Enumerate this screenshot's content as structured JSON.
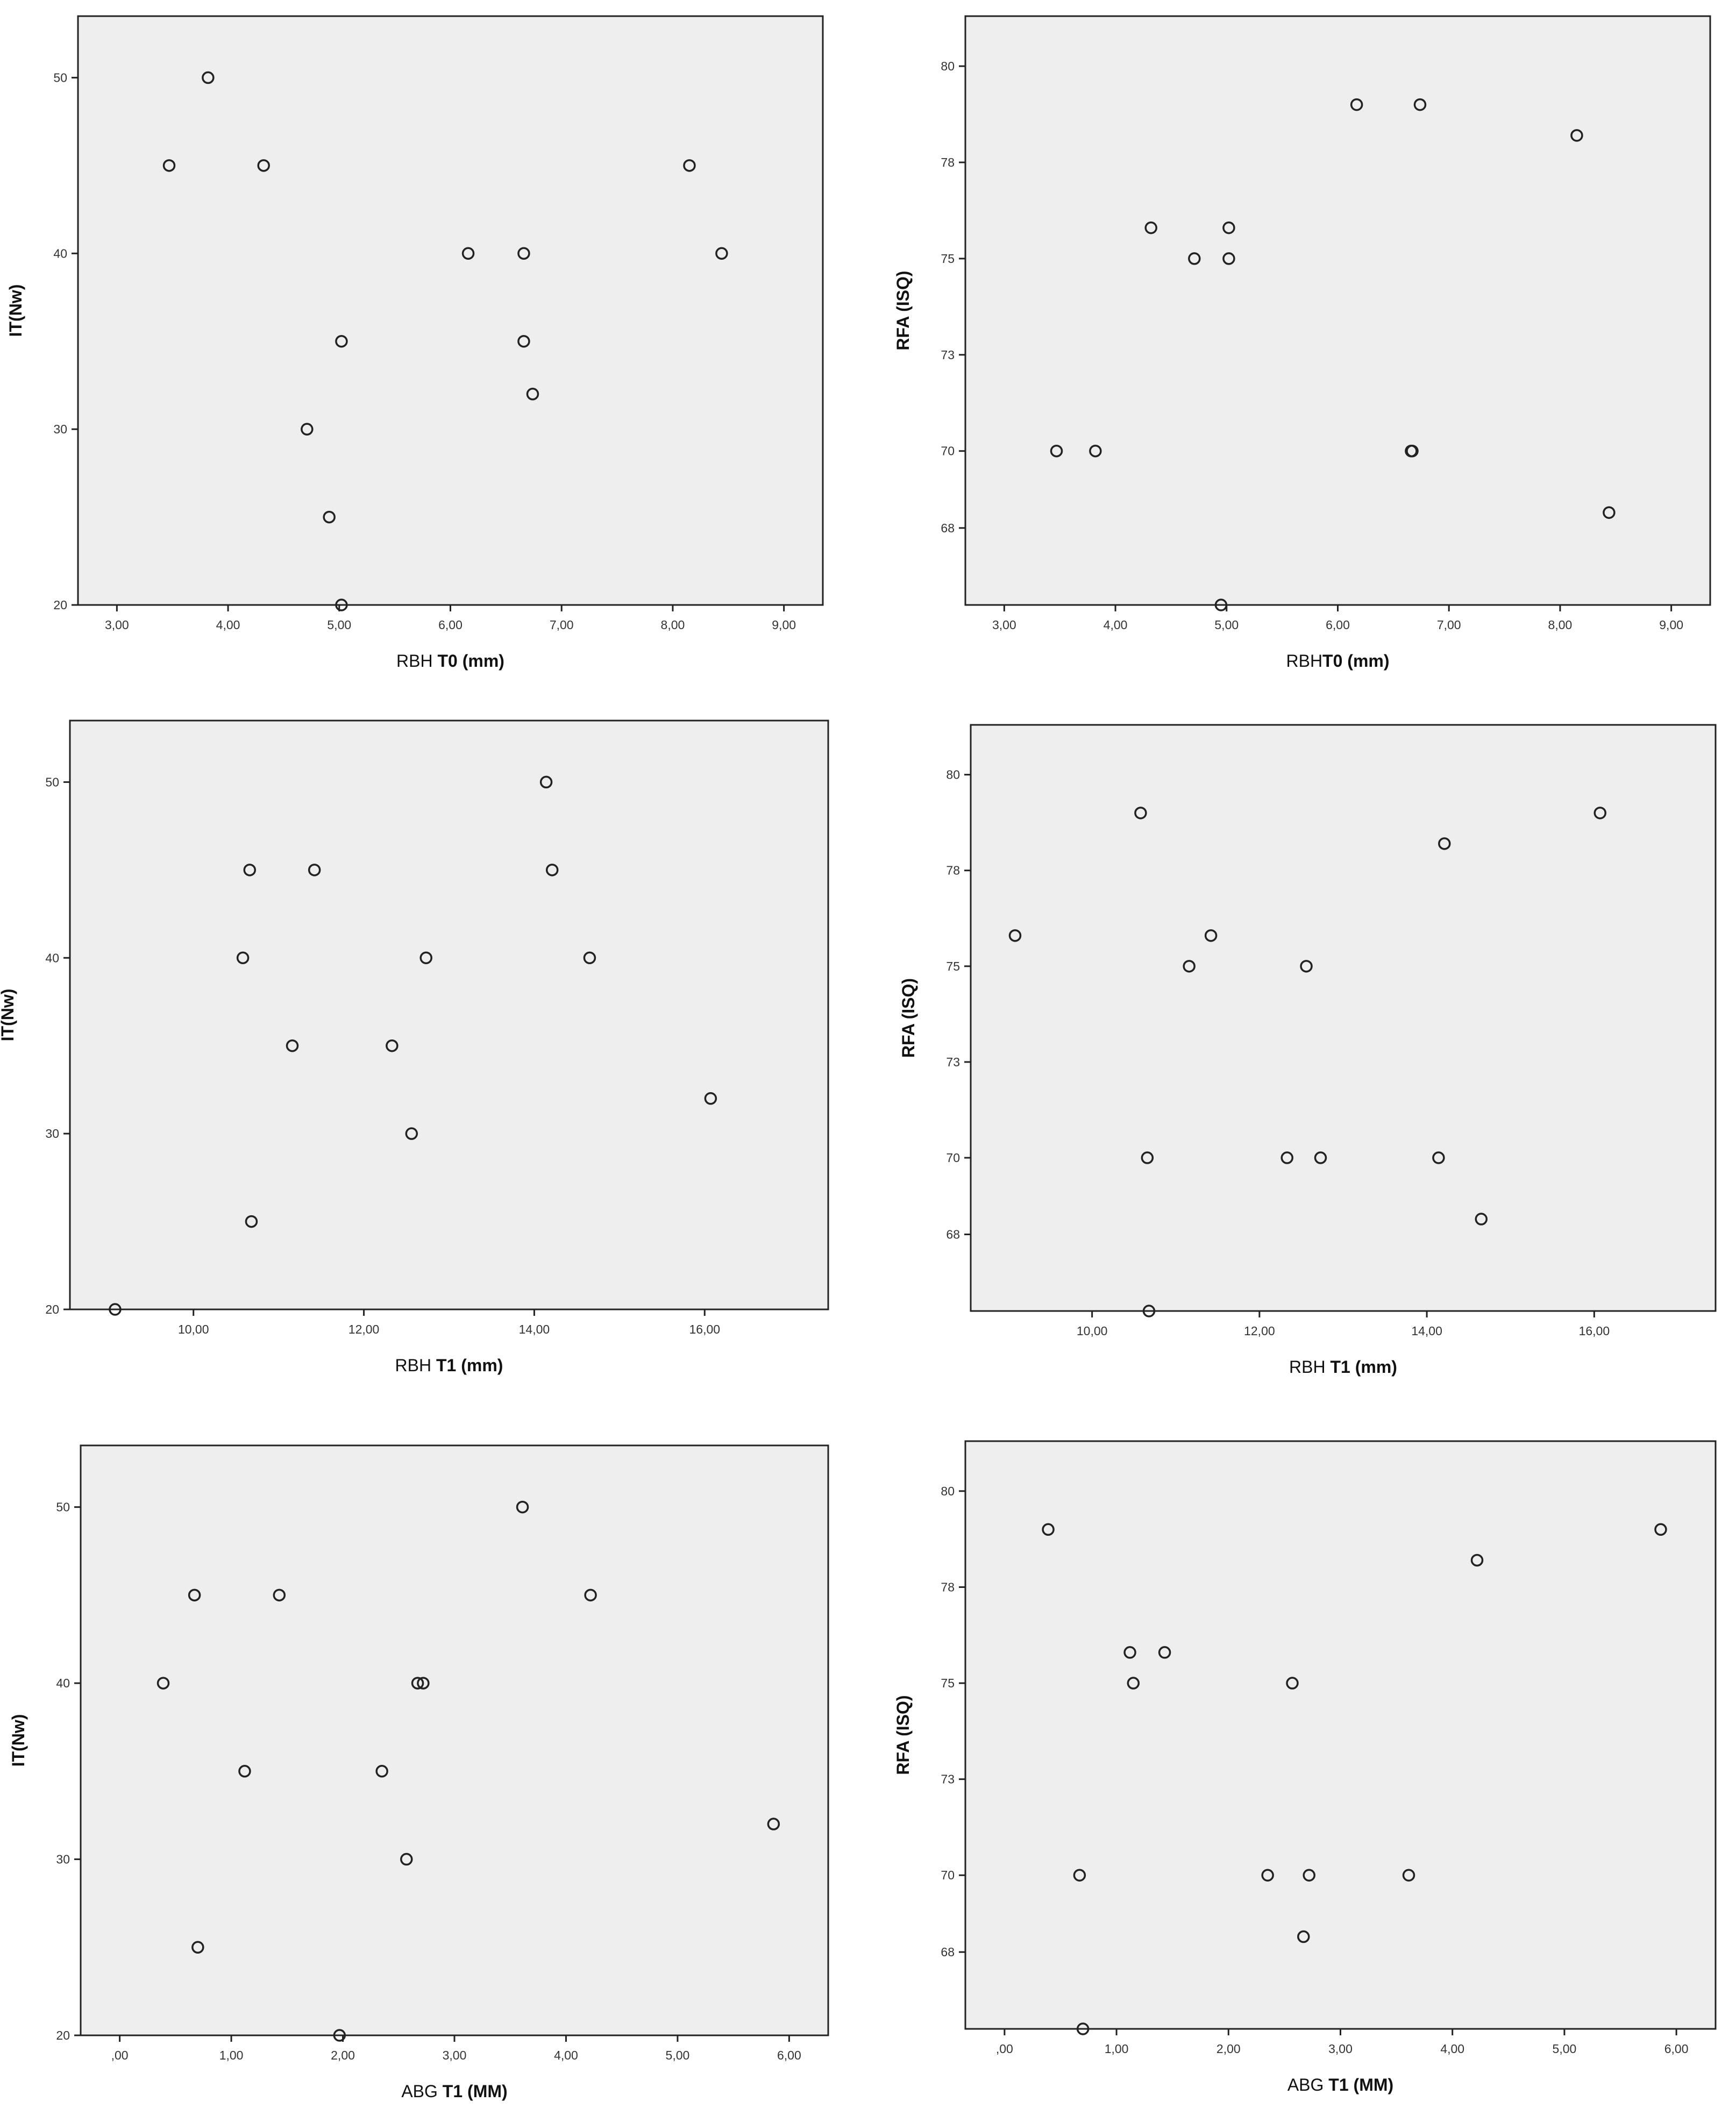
{
  "chart_data": [
    {
      "type": "scatter",
      "xlabel": "RBH T0 (mm)",
      "xlabel_parts": [
        "RBH ",
        "T0 (mm)"
      ],
      "ylabel": "IT(Nw)",
      "xlim": [
        2.65,
        9.35
      ],
      "ylim": [
        20,
        53.5
      ],
      "xticks": [
        3,
        4,
        5,
        6,
        7,
        8,
        9
      ],
      "xtick_labels": [
        "3,00",
        "4,00",
        "5,00",
        "6,00",
        "7,00",
        "8,00",
        "9,00"
      ],
      "yticks": [
        20,
        30,
        40,
        50
      ],
      "ytick_labels": [
        "20",
        "30",
        "40",
        "50"
      ],
      "grid": false,
      "points": [
        {
          "x": 3.47,
          "y": 45
        },
        {
          "x": 3.82,
          "y": 50
        },
        {
          "x": 4.32,
          "y": 45
        },
        {
          "x": 4.71,
          "y": 30
        },
        {
          "x": 4.91,
          "y": 25
        },
        {
          "x": 5.02,
          "y": 35
        },
        {
          "x": 5.02,
          "y": 20
        },
        {
          "x": 6.16,
          "y": 40
        },
        {
          "x": 6.66,
          "y": 40
        },
        {
          "x": 6.66,
          "y": 35
        },
        {
          "x": 6.74,
          "y": 32
        },
        {
          "x": 8.15,
          "y": 45
        },
        {
          "x": 8.44,
          "y": 40
        }
      ]
    },
    {
      "type": "scatter",
      "xlabel": "RBHT0 (mm)",
      "xlabel_parts": [
        "RBH",
        "T0 (mm)"
      ],
      "ylabel": "RFA (ISQ)",
      "xlim": [
        2.65,
        9.35
      ],
      "ylim": [
        66,
        81.3
      ],
      "xticks": [
        3,
        4,
        5,
        6,
        7,
        8,
        9
      ],
      "xtick_labels": [
        "3,00",
        "4,00",
        "5,00",
        "6,00",
        "7,00",
        "8,00",
        "9,00"
      ],
      "yticks": [
        68,
        70,
        72.5,
        75,
        77.5,
        80
      ],
      "ytick_labels": [
        "68",
        "70",
        "73",
        "75",
        "78",
        "80"
      ],
      "grid": false,
      "points": [
        {
          "x": 3.47,
          "y": 70
        },
        {
          "x": 3.82,
          "y": 70
        },
        {
          "x": 4.32,
          "y": 75.8
        },
        {
          "x": 4.71,
          "y": 75
        },
        {
          "x": 4.95,
          "y": 66
        },
        {
          "x": 5.02,
          "y": 75.8
        },
        {
          "x": 5.02,
          "y": 75
        },
        {
          "x": 6.17,
          "y": 79
        },
        {
          "x": 6.66,
          "y": 70
        },
        {
          "x": 6.67,
          "y": 70
        },
        {
          "x": 6.74,
          "y": 79
        },
        {
          "x": 8.15,
          "y": 78.2
        },
        {
          "x": 8.44,
          "y": 68.4
        }
      ]
    },
    {
      "type": "scatter",
      "xlabel": "RBH T1 (mm)",
      "xlabel_parts": [
        "RBH ",
        "T1 (mm)"
      ],
      "ylabel": "IT(Nw)",
      "xlim": [
        8.55,
        17.45
      ],
      "ylim": [
        20,
        53.5
      ],
      "xticks": [
        10,
        12,
        14,
        16
      ],
      "xtick_labels": [
        "10,00",
        "12,00",
        "14,00",
        "16,00"
      ],
      "yticks": [
        20,
        30,
        40,
        50
      ],
      "ytick_labels": [
        "20",
        "30",
        "40",
        "50"
      ],
      "grid": false,
      "points": [
        {
          "x": 9.08,
          "y": 20
        },
        {
          "x": 10.58,
          "y": 40
        },
        {
          "x": 10.66,
          "y": 45
        },
        {
          "x": 10.68,
          "y": 25
        },
        {
          "x": 11.16,
          "y": 35
        },
        {
          "x": 11.42,
          "y": 45
        },
        {
          "x": 12.33,
          "y": 35
        },
        {
          "x": 12.56,
          "y": 30
        },
        {
          "x": 12.73,
          "y": 40
        },
        {
          "x": 14.14,
          "y": 50
        },
        {
          "x": 14.21,
          "y": 45
        },
        {
          "x": 14.65,
          "y": 40
        },
        {
          "x": 16.07,
          "y": 32
        }
      ]
    },
    {
      "type": "scatter",
      "xlabel": "RBH T1 (mm)",
      "xlabel_parts": [
        "RBH ",
        "T1 (mm)"
      ],
      "ylabel": "RFA (ISQ)",
      "xlim": [
        8.55,
        17.45
      ],
      "ylim": [
        66,
        81.3
      ],
      "xticks": [
        10,
        12,
        14,
        16
      ],
      "xtick_labels": [
        "10,00",
        "12,00",
        "14,00",
        "16,00"
      ],
      "yticks": [
        68,
        70,
        72.5,
        75,
        77.5,
        80
      ],
      "ytick_labels": [
        "68",
        "70",
        "73",
        "75",
        "78",
        "80"
      ],
      "grid": false,
      "points": [
        {
          "x": 9.08,
          "y": 75.8
        },
        {
          "x": 10.58,
          "y": 79
        },
        {
          "x": 10.66,
          "y": 70
        },
        {
          "x": 10.68,
          "y": 66
        },
        {
          "x": 11.16,
          "y": 75
        },
        {
          "x": 11.42,
          "y": 75.8
        },
        {
          "x": 12.33,
          "y": 70
        },
        {
          "x": 12.56,
          "y": 75
        },
        {
          "x": 12.73,
          "y": 70
        },
        {
          "x": 14.14,
          "y": 70
        },
        {
          "x": 14.21,
          "y": 78.2
        },
        {
          "x": 14.65,
          "y": 68.4
        },
        {
          "x": 16.07,
          "y": 79
        }
      ]
    },
    {
      "type": "scatter",
      "xlabel": "ABG T1 (MM)",
      "xlabel_parts": [
        "ABG ",
        "T1 (MM)"
      ],
      "ylabel": "IT(Nw)",
      "xlim": [
        -0.35,
        6.35
      ],
      "ylim": [
        20,
        53.5
      ],
      "xticks": [
        0,
        1,
        2,
        3,
        4,
        5,
        6
      ],
      "xtick_labels": [
        ",00",
        "1,00",
        "2,00",
        "3,00",
        "4,00",
        "5,00",
        "6,00"
      ],
      "yticks": [
        20,
        30,
        40,
        50
      ],
      "ytick_labels": [
        "20",
        "30",
        "40",
        "50"
      ],
      "grid": false,
      "points": [
        {
          "x": 0.39,
          "y": 40
        },
        {
          "x": 0.67,
          "y": 45
        },
        {
          "x": 0.7,
          "y": 25
        },
        {
          "x": 1.12,
          "y": 35
        },
        {
          "x": 1.43,
          "y": 45
        },
        {
          "x": 1.97,
          "y": 20
        },
        {
          "x": 2.35,
          "y": 35
        },
        {
          "x": 2.57,
          "y": 30
        },
        {
          "x": 2.67,
          "y": 40
        },
        {
          "x": 2.72,
          "y": 40
        },
        {
          "x": 3.61,
          "y": 50
        },
        {
          "x": 4.22,
          "y": 45
        },
        {
          "x": 5.86,
          "y": 32
        }
      ]
    },
    {
      "type": "scatter",
      "xlabel": "ABG T1 (MM)",
      "xlabel_parts": [
        "ABG ",
        "T1 (MM)"
      ],
      "ylabel": "RFA (ISQ)",
      "xlim": [
        -0.35,
        6.35
      ],
      "ylim": [
        66,
        81.3
      ],
      "xticks": [
        0,
        1,
        2,
        3,
        4,
        5,
        6
      ],
      "xtick_labels": [
        ",00",
        "1,00",
        "2,00",
        "3,00",
        "4,00",
        "5,00",
        "6,00"
      ],
      "yticks": [
        68,
        70,
        72.5,
        75,
        77.5,
        80
      ],
      "ytick_labels": [
        "68",
        "70",
        "73",
        "75",
        "78",
        "80"
      ],
      "grid": false,
      "points": [
        {
          "x": 0.39,
          "y": 79
        },
        {
          "x": 0.67,
          "y": 70
        },
        {
          "x": 0.7,
          "y": 66
        },
        {
          "x": 1.12,
          "y": 75.8
        },
        {
          "x": 1.15,
          "y": 75
        },
        {
          "x": 1.43,
          "y": 75.8
        },
        {
          "x": 2.35,
          "y": 70
        },
        {
          "x": 2.57,
          "y": 75
        },
        {
          "x": 2.67,
          "y": 68.4
        },
        {
          "x": 2.72,
          "y": 70
        },
        {
          "x": 3.61,
          "y": 70
        },
        {
          "x": 4.22,
          "y": 78.2
        },
        {
          "x": 5.86,
          "y": 79
        }
      ]
    }
  ],
  "colors": {
    "plot_background": "#eeeeee",
    "axis": "#222222",
    "marker": "#222222",
    "page_background": "#ffffff"
  }
}
